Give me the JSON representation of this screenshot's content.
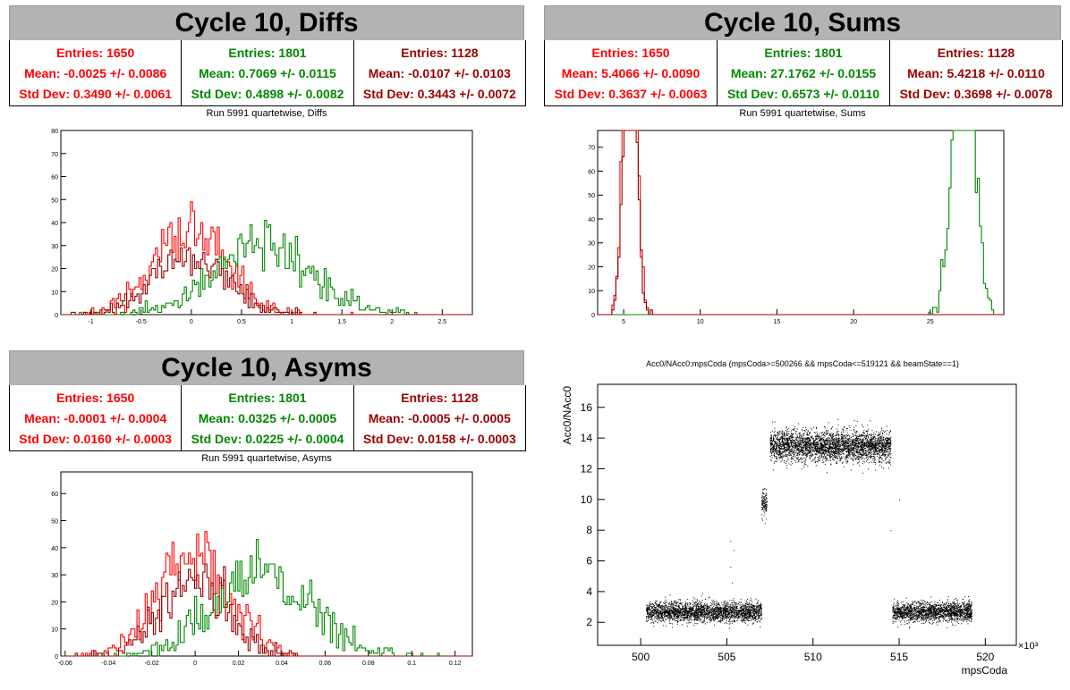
{
  "colors": {
    "red": "#ff0000",
    "green": "#008800",
    "darkred": "#990000"
  },
  "panels": {
    "diffs": {
      "title": "Cycle 10, Diffs",
      "subtitle": "Run 5991 quartetwise, Diffs",
      "stats": [
        {
          "entries": "Entries: 1650",
          "mean": "Mean: -0.0025 +/- 0.0086",
          "std": "Std Dev: 0.3490 +/- 0.0061",
          "color": "#ff0000"
        },
        {
          "entries": "Entries: 1801",
          "mean": "Mean: 0.7069 +/- 0.0115",
          "std": "Std Dev: 0.4898 +/- 0.0082",
          "color": "#008800"
        },
        {
          "entries": "Entries: 1128",
          "mean": "Mean: -0.0107 +/- 0.0103",
          "std": "Std Dev: 0.3443 +/- 0.0072",
          "color": "#990000"
        }
      ]
    },
    "sums": {
      "title": "Cycle 10, Sums",
      "subtitle": "Run 5991 quartetwise, Sums",
      "stats": [
        {
          "entries": "Entries: 1650",
          "mean": "Mean: 5.4066 +/- 0.0090",
          "std": "Std Dev: 0.3637 +/- 0.0063",
          "color": "#ff0000"
        },
        {
          "entries": "Entries: 1801",
          "mean": "Mean: 27.1762 +/- 0.0155",
          "std": "Std Dev: 0.6573 +/- 0.0110",
          "color": "#008800"
        },
        {
          "entries": "Entries: 1128",
          "mean": "Mean: 5.4218 +/- 0.0110",
          "std": "Std Dev: 0.3698 +/- 0.0078",
          "color": "#990000"
        }
      ]
    },
    "asyms": {
      "title": "Cycle 10, Asyms",
      "subtitle": "Run 5991 quartetwise, Asyms",
      "stats": [
        {
          "entries": "Entries: 1650",
          "mean": "Mean: -0.0001 +/- 0.0004",
          "std": "Std Dev: 0.0160 +/- 0.0003",
          "color": "#ff0000"
        },
        {
          "entries": "Entries: 1801",
          "mean": "Mean: 0.0325 +/- 0.0005",
          "std": "Std Dev: 0.0225 +/- 0.0004",
          "color": "#008800"
        },
        {
          "entries": "Entries: 1128",
          "mean": "Mean: -0.0005 +/- 0.0005",
          "std": "Std Dev: 0.0158 +/- 0.0003",
          "color": "#990000"
        }
      ]
    },
    "scatter": {
      "title": "Acc0/NAcc0:mpsCoda (mpsCoda>=500266 && mpsCoda<=519121 && beamState==1)"
    }
  },
  "chart_data": [
    {
      "type": "histogram",
      "name": "diffs",
      "xlim": [
        -1.3,
        2.8
      ],
      "ylim": [
        0,
        80
      ],
      "xticks": [
        -1,
        -0.5,
        0,
        0.5,
        1,
        1.5,
        2,
        2.5
      ],
      "xtick_labels": [
        "-1",
        "-0.5",
        "0",
        "0.5",
        "1",
        "1.5",
        "2",
        "2.5"
      ],
      "yticks": [
        0,
        10,
        20,
        30,
        40,
        50,
        60,
        70,
        80
      ],
      "series": [
        {
          "color": "#ff0000",
          "mean": -0.0025,
          "std": 0.349,
          "entries": 1650
        },
        {
          "color": "#008800",
          "mean": 0.7069,
          "std": 0.4898,
          "entries": 1801
        },
        {
          "color": "#990000",
          "mean": -0.0107,
          "std": 0.3443,
          "entries": 1128
        }
      ]
    },
    {
      "type": "histogram",
      "name": "sums",
      "xlim": [
        3.3,
        29.8
      ],
      "ylim": [
        0,
        77
      ],
      "xticks": [
        5,
        10,
        15,
        20,
        25
      ],
      "xtick_labels": [
        "5",
        "10",
        "15",
        "20",
        "25"
      ],
      "yticks": [
        0,
        10,
        20,
        30,
        40,
        50,
        60,
        70
      ],
      "series": [
        {
          "color": "#ff0000",
          "mean": 5.4066,
          "std": 0.3637,
          "entries": 1650
        },
        {
          "color": "#008800",
          "mean": 27.1762,
          "std": 0.6573,
          "entries": 1801
        },
        {
          "color": "#990000",
          "mean": 5.4218,
          "std": 0.3698,
          "entries": 1128
        }
      ]
    },
    {
      "type": "histogram",
      "name": "asyms",
      "xlim": [
        -0.062,
        0.128
      ],
      "ylim": [
        0,
        68
      ],
      "xticks": [
        -0.06,
        -0.04,
        -0.02,
        0,
        0.02,
        0.04,
        0.06,
        0.08,
        0.1,
        0.12
      ],
      "xtick_labels": [
        "-0.06",
        "-0.04",
        "-0.02",
        "0",
        "0.02",
        "0.04",
        "0.06",
        "0.08",
        "0.1",
        "0.12"
      ],
      "yticks": [
        0,
        10,
        20,
        30,
        40,
        50,
        60
      ],
      "series": [
        {
          "color": "#ff0000",
          "mean": -0.0001,
          "std": 0.016,
          "entries": 1650
        },
        {
          "color": "#008800",
          "mean": 0.0325,
          "std": 0.0225,
          "entries": 1801
        },
        {
          "color": "#990000",
          "mean": -0.0005,
          "std": 0.0158,
          "entries": 1128
        }
      ]
    },
    {
      "type": "scatter",
      "name": "acc0-vs-mpscoda",
      "xlabel": "mpsCoda",
      "ylabel": "Acc0/NAcc0",
      "xlim": [
        497.5,
        521.8
      ],
      "ylim": [
        0.5,
        17.5
      ],
      "xticks": [
        500,
        505,
        510,
        515,
        520
      ],
      "xtick_labels": [
        "500",
        "505",
        "510",
        "515",
        "520"
      ],
      "yticks": [
        2,
        4,
        6,
        8,
        10,
        12,
        14,
        16
      ],
      "x_exponent": "×10³",
      "bands": [
        {
          "x": [
            500.3,
            507.0
          ],
          "y_center": 2.7,
          "y_spread": 0.45,
          "n": 2600
        },
        {
          "x": [
            507.0,
            507.3
          ],
          "y_center": 9.7,
          "y_spread": 0.6,
          "n": 120
        },
        {
          "x": [
            507.5,
            514.5
          ],
          "y_center": 13.5,
          "y_spread": 0.7,
          "n": 3200
        },
        {
          "x": [
            514.6,
            519.2
          ],
          "y_center": 2.7,
          "y_spread": 0.45,
          "n": 1800
        }
      ]
    }
  ]
}
